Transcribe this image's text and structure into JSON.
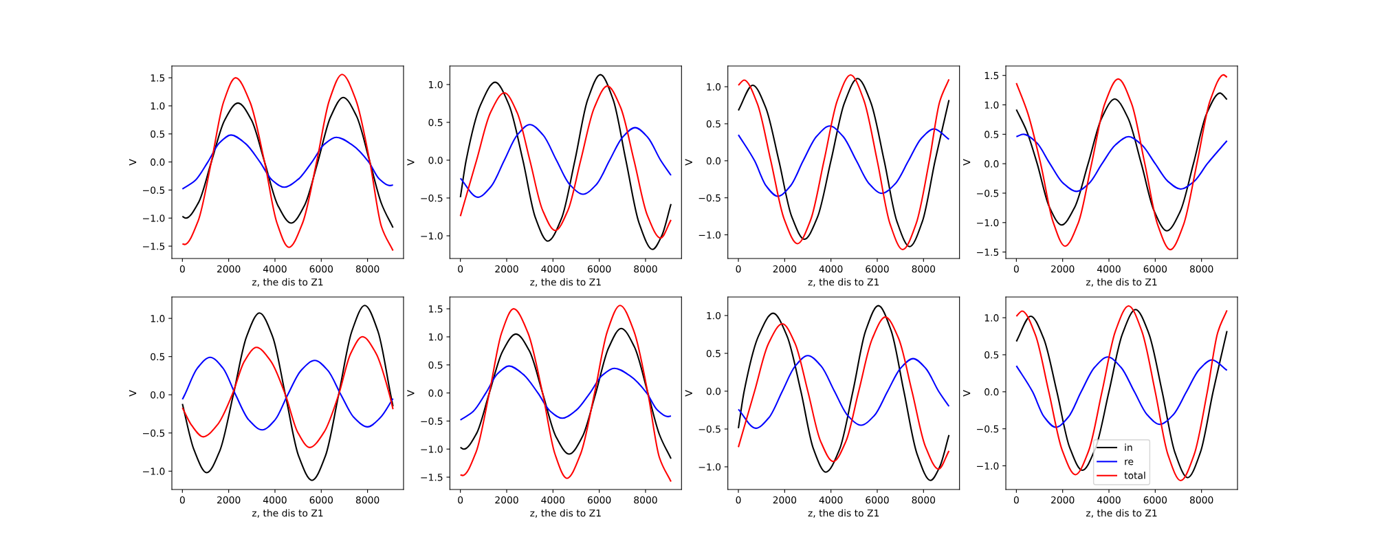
{
  "chart_data": [
    {
      "type": "line",
      "xlabel": "z, the dis to Z1",
      "ylabel": "V",
      "xlim": [
        -455,
        9555
      ],
      "ylim": [
        -1.72,
        1.71
      ],
      "xticks": [
        0,
        2000,
        4000,
        6000,
        8000
      ],
      "yticks": [
        {
          "value": -1.5,
          "label": "−1.5"
        },
        {
          "value": -1.0,
          "label": "−1.0"
        },
        {
          "value": -0.5,
          "label": "−0.5"
        },
        {
          "value": 0.0,
          "label": "0.0"
        },
        {
          "value": 0.5,
          "label": "0.5"
        },
        {
          "value": 1.0,
          "label": "1.0"
        },
        {
          "value": 1.5,
          "label": "1.5"
        }
      ],
      "series": [
        {
          "color": "#000000",
          "x": [
            0,
            150,
            700,
            1250,
            1820,
            2400,
            2980,
            3550,
            4120,
            4700,
            5270,
            5850,
            6400,
            6950,
            7520,
            8100,
            8600,
            9100
          ],
          "values": [
            -0.97,
            -1.0,
            -0.72,
            0,
            0.74,
            1.05,
            0.75,
            0,
            -0.77,
            -1.09,
            -0.78,
            0,
            0.8,
            1.15,
            0.82,
            0,
            -0.74,
            -1.17
          ]
        },
        {
          "color": "#0000ff",
          "x": [
            0,
            550,
            1100,
            1600,
            2100,
            2720,
            3350,
            3870,
            4400,
            5000,
            5600,
            6120,
            6650,
            7350,
            8050,
            8500,
            8950,
            9100
          ],
          "values": [
            -0.48,
            -0.33,
            0,
            0.34,
            0.48,
            0.33,
            0,
            -0.32,
            -0.45,
            -0.31,
            0,
            0.31,
            0.44,
            0.3,
            0,
            -0.3,
            -0.42,
            -0.41
          ]
        },
        {
          "color": "#ff0000",
          "x": [
            0,
            100,
            680,
            1250,
            1780,
            2300,
            2920,
            3550,
            4080,
            4600,
            5200,
            5800,
            6350,
            6900,
            7500,
            8100,
            8600,
            9100
          ],
          "values": [
            -1.46,
            -1.47,
            -1.05,
            0,
            1.07,
            1.5,
            1.07,
            0,
            -1.08,
            -1.52,
            -1.08,
            0,
            1.1,
            1.56,
            1.1,
            0,
            -1.15,
            -1.58
          ]
        }
      ]
    },
    {
      "type": "line",
      "xlabel": "z, the dis to Z1",
      "ylabel": "V",
      "xlim": [
        -455,
        9555
      ],
      "ylim": [
        -1.3,
        1.245
      ],
      "xticks": [
        0,
        2000,
        4000,
        6000,
        8000
      ],
      "yticks": [
        {
          "value": -1.0,
          "label": "−1.0"
        },
        {
          "value": -0.5,
          "label": "−0.5"
        },
        {
          "value": 0.0,
          "label": "0.0"
        },
        {
          "value": 0.5,
          "label": "0.5"
        },
        {
          "value": 1.0,
          "label": "1.0"
        }
      ],
      "series": [
        {
          "color": "#000000",
          "x": [
            0,
            250,
            870,
            1500,
            2100,
            2700,
            3240,
            3780,
            4370,
            4950,
            5500,
            6050,
            6600,
            7150,
            7720,
            8300,
            8700,
            9100
          ],
          "values": [
            -0.49,
            0,
            0.73,
            1.03,
            0.73,
            0,
            -0.76,
            -1.07,
            -0.77,
            0,
            0.8,
            1.13,
            0.8,
            0,
            -0.83,
            -1.18,
            -1.0,
            -0.58
          ]
        },
        {
          "color": "#0000ff",
          "x": [
            0,
            750,
            1320,
            1900,
            2450,
            3000,
            3580,
            4150,
            4720,
            5300,
            5880,
            6450,
            7000,
            7550,
            8100,
            8650,
            9100
          ],
          "values": [
            -0.24,
            -0.49,
            -0.35,
            0,
            0.33,
            0.47,
            0.33,
            0,
            -0.32,
            -0.45,
            -0.32,
            0,
            0.3,
            0.43,
            0.3,
            0,
            -0.2
          ]
        },
        {
          "color": "#ff0000",
          "x": [
            0,
            700,
            1300,
            1900,
            2450,
            3000,
            3550,
            4100,
            4650,
            5200,
            5780,
            6350,
            6920,
            7500,
            8080,
            8650,
            9100
          ],
          "values": [
            -0.74,
            0,
            0.63,
            0.89,
            0.63,
            0,
            -0.66,
            -0.93,
            -0.66,
            0,
            0.69,
            0.98,
            0.7,
            0,
            -0.73,
            -1.03,
            -0.79
          ]
        }
      ]
    },
    {
      "type": "line",
      "xlabel": "z, the dis to Z1",
      "ylabel": "V",
      "xlim": [
        -455,
        9555
      ],
      "ylim": [
        -1.32,
        1.28
      ],
      "xticks": [
        0,
        2000,
        4000,
        6000,
        8000
      ],
      "yticks": [
        {
          "value": -1.0,
          "label": "−1.0"
        },
        {
          "value": -0.5,
          "label": "−0.5"
        },
        {
          "value": 0.0,
          "label": "0.0"
        },
        {
          "value": 0.5,
          "label": "0.5"
        },
        {
          "value": 1.0,
          "label": "1.0"
        }
      ],
      "series": [
        {
          "color": "#000000",
          "x": [
            0,
            620,
            1180,
            1750,
            2300,
            2850,
            3420,
            4000,
            4580,
            5150,
            5720,
            6300,
            6850,
            7400,
            7950,
            8500,
            9100
          ],
          "values": [
            0.68,
            1.02,
            0.72,
            0,
            -0.75,
            -1.06,
            -0.76,
            0,
            0.78,
            1.11,
            0.79,
            0,
            -0.82,
            -1.16,
            -0.82,
            0,
            0.82
          ]
        },
        {
          "color": "#0000ff",
          "x": [
            0,
            700,
            1200,
            1700,
            2250,
            2800,
            3380,
            3950,
            4520,
            5100,
            5650,
            6200,
            6780,
            7350,
            7900,
            8450,
            9100
          ],
          "values": [
            0.35,
            0,
            -0.34,
            -0.48,
            -0.34,
            0,
            0.33,
            0.47,
            0.33,
            0,
            -0.31,
            -0.44,
            -0.31,
            0,
            0.3,
            0.43,
            0.29
          ]
        },
        {
          "color": "#ff0000",
          "x": [
            0,
            250,
            820,
            1400,
            1980,
            2550,
            3120,
            3700,
            4280,
            4850,
            5420,
            6000,
            6550,
            7100,
            7680,
            8250,
            8700,
            9100
          ],
          "values": [
            1.02,
            1.09,
            0.77,
            0,
            -0.79,
            -1.12,
            -0.8,
            0,
            0.82,
            1.16,
            0.82,
            0,
            -0.85,
            -1.2,
            -0.85,
            0,
            0.8,
            1.1
          ]
        }
      ]
    },
    {
      "type": "line",
      "xlabel": "z, the dis to Z1",
      "ylabel": "V",
      "xlim": [
        -455,
        9555
      ],
      "ylim": [
        -1.61,
        1.66
      ],
      "xticks": [
        0,
        2000,
        4000,
        6000,
        8000
      ],
      "yticks": [
        {
          "value": -1.5,
          "label": "−1.5"
        },
        {
          "value": -1.0,
          "label": "−1.0"
        },
        {
          "value": -0.5,
          "label": "−0.5"
        },
        {
          "value": 0.0,
          "label": "0.0"
        },
        {
          "value": 0.5,
          "label": "0.5"
        },
        {
          "value": 1.0,
          "label": "1.0"
        },
        {
          "value": 1.5,
          "label": "1.5"
        }
      ],
      "series": [
        {
          "color": "#000000",
          "x": [
            0,
            450,
            900,
            1420,
            1950,
            2520,
            3100,
            3680,
            4250,
            4820,
            5400,
            5950,
            6500,
            7080,
            7650,
            8220,
            8800,
            9100
          ],
          "values": [
            0.92,
            0.55,
            0,
            -0.73,
            -1.04,
            -0.74,
            0,
            0.77,
            1.1,
            0.78,
            0,
            -0.8,
            -1.14,
            -0.81,
            0,
            0.85,
            1.2,
            1.09
          ]
        },
        {
          "color": "#0000ff",
          "x": [
            0,
            300,
            870,
            1450,
            2020,
            2600,
            3150,
            3700,
            4280,
            4850,
            5420,
            6000,
            6550,
            7100,
            7680,
            8250,
            9100
          ],
          "values": [
            0.46,
            0.5,
            0.36,
            0,
            -0.33,
            -0.47,
            -0.33,
            0,
            0.32,
            0.46,
            0.32,
            0,
            -0.3,
            -0.43,
            -0.3,
            0,
            0.39
          ]
        },
        {
          "color": "#ff0000",
          "x": [
            0,
            500,
            1050,
            1580,
            2100,
            2680,
            3250,
            3820,
            4400,
            4980,
            5550,
            6100,
            6650,
            7220,
            7800,
            8370,
            8950,
            9100
          ],
          "values": [
            1.37,
            0.85,
            0,
            -0.98,
            -1.4,
            -1.0,
            0,
            1.02,
            1.44,
            1.02,
            0,
            -1.03,
            -1.46,
            -1.04,
            0,
            1.07,
            1.51,
            1.47
          ]
        }
      ]
    },
    {
      "type": "line",
      "xlabel": "z, the dis to Z1",
      "ylabel": "V",
      "xlim": [
        -455,
        9555
      ],
      "ylim": [
        -1.24,
        1.28
      ],
      "xticks": [
        0,
        2000,
        4000,
        6000,
        8000
      ],
      "yticks": [
        {
          "value": -1.0,
          "label": "−1.0"
        },
        {
          "value": -0.5,
          "label": "−0.5"
        },
        {
          "value": 0.0,
          "label": "0.0"
        },
        {
          "value": 0.5,
          "label": "0.5"
        },
        {
          "value": 1.0,
          "label": "1.0"
        }
      ],
      "series": [
        {
          "color": "#000000",
          "x": [
            0,
            500,
            1050,
            1620,
            2200,
            2770,
            3330,
            3900,
            4450,
            5020,
            5600,
            6180,
            6750,
            7320,
            7880,
            8450,
            9000,
            9100
          ],
          "values": [
            -0.12,
            -0.72,
            -1.02,
            -0.73,
            0,
            0.76,
            1.07,
            0.76,
            0,
            -0.8,
            -1.12,
            -0.8,
            0,
            0.83,
            1.17,
            0.83,
            0,
            -0.15
          ]
        },
        {
          "color": "#0000ff",
          "x": [
            0,
            100,
            650,
            1200,
            1750,
            2300,
            2870,
            3450,
            4000,
            4550,
            5130,
            5720,
            6280,
            6850,
            7420,
            8000,
            8550,
            9100
          ],
          "values": [
            -0.06,
            0,
            0.35,
            0.49,
            0.35,
            0,
            -0.33,
            -0.46,
            -0.33,
            0,
            0.32,
            0.45,
            0.32,
            0,
            -0.3,
            -0.42,
            -0.3,
            -0.05
          ]
        },
        {
          "color": "#ff0000",
          "x": [
            0,
            400,
            900,
            1520,
            2150,
            2680,
            3200,
            3820,
            4450,
            4980,
            5500,
            6120,
            6750,
            7270,
            7780,
            8370,
            8950,
            9100
          ],
          "values": [
            -0.17,
            -0.4,
            -0.55,
            -0.39,
            0,
            0.44,
            0.62,
            0.44,
            0,
            -0.49,
            -0.69,
            -0.49,
            0,
            0.54,
            0.76,
            0.54,
            0,
            -0.19
          ]
        }
      ]
    },
    {
      "type": "line",
      "xlabel": "z, the dis to Z1",
      "ylabel": "V",
      "xlim": [
        -455,
        9555
      ],
      "ylim": [
        -1.72,
        1.71
      ],
      "xticks": [
        0,
        2000,
        4000,
        6000,
        8000
      ],
      "yticks": [
        {
          "value": -1.5,
          "label": "−1.5"
        },
        {
          "value": -1.0,
          "label": "−1.0"
        },
        {
          "value": -0.5,
          "label": "−0.5"
        },
        {
          "value": 0.0,
          "label": "0.0"
        },
        {
          "value": 0.5,
          "label": "0.5"
        },
        {
          "value": 1.0,
          "label": "1.0"
        },
        {
          "value": 1.5,
          "label": "1.5"
        }
      ],
      "series": [
        {
          "color": "#000000",
          "x": [
            0,
            150,
            700,
            1250,
            1820,
            2400,
            2980,
            3550,
            4120,
            4700,
            5270,
            5850,
            6400,
            6950,
            7520,
            8100,
            8600,
            9100
          ],
          "values": [
            -0.97,
            -1.0,
            -0.72,
            0,
            0.74,
            1.05,
            0.75,
            0,
            -0.77,
            -1.09,
            -0.78,
            0,
            0.8,
            1.15,
            0.82,
            0,
            -0.74,
            -1.17
          ]
        },
        {
          "color": "#0000ff",
          "x": [
            0,
            550,
            1100,
            1600,
            2100,
            2720,
            3350,
            3870,
            4400,
            5000,
            5600,
            6120,
            6650,
            7350,
            8050,
            8500,
            8950,
            9100
          ],
          "values": [
            -0.48,
            -0.33,
            0,
            0.34,
            0.48,
            0.33,
            0,
            -0.32,
            -0.45,
            -0.31,
            0,
            0.31,
            0.44,
            0.3,
            0,
            -0.3,
            -0.42,
            -0.41
          ]
        },
        {
          "color": "#ff0000",
          "x": [
            0,
            100,
            680,
            1250,
            1780,
            2300,
            2920,
            3550,
            4080,
            4600,
            5200,
            5800,
            6350,
            6900,
            7500,
            8100,
            8600,
            9100
          ],
          "values": [
            -1.46,
            -1.47,
            -1.05,
            0,
            1.07,
            1.5,
            1.07,
            0,
            -1.08,
            -1.52,
            -1.08,
            0,
            1.1,
            1.56,
            1.1,
            0,
            -1.15,
            -1.58
          ]
        }
      ]
    },
    {
      "type": "line",
      "xlabel": "z, the dis to Z1",
      "ylabel": "V",
      "xlim": [
        -455,
        9555
      ],
      "ylim": [
        -1.3,
        1.245
      ],
      "xticks": [
        0,
        2000,
        4000,
        6000,
        8000
      ],
      "yticks": [
        {
          "value": -1.0,
          "label": "−1.0"
        },
        {
          "value": -0.5,
          "label": "−0.5"
        },
        {
          "value": 0.0,
          "label": "0.0"
        },
        {
          "value": 0.5,
          "label": "0.5"
        },
        {
          "value": 1.0,
          "label": "1.0"
        }
      ],
      "series": [
        {
          "color": "#000000",
          "x": [
            0,
            250,
            870,
            1500,
            2100,
            2700,
            3240,
            3780,
            4370,
            4950,
            5500,
            6050,
            6600,
            7150,
            7720,
            8300,
            8700,
            9100
          ],
          "values": [
            -0.49,
            0,
            0.73,
            1.03,
            0.73,
            0,
            -0.76,
            -1.07,
            -0.77,
            0,
            0.8,
            1.13,
            0.8,
            0,
            -0.83,
            -1.18,
            -1.0,
            -0.58
          ]
        },
        {
          "color": "#0000ff",
          "x": [
            0,
            750,
            1320,
            1900,
            2450,
            3000,
            3580,
            4150,
            4720,
            5300,
            5880,
            6450,
            7000,
            7550,
            8100,
            8650,
            9100
          ],
          "values": [
            -0.24,
            -0.49,
            -0.35,
            0,
            0.33,
            0.47,
            0.33,
            0,
            -0.32,
            -0.45,
            -0.32,
            0,
            0.3,
            0.43,
            0.3,
            0,
            -0.2
          ]
        },
        {
          "color": "#ff0000",
          "x": [
            0,
            700,
            1300,
            1900,
            2450,
            3000,
            3550,
            4100,
            4650,
            5200,
            5780,
            6350,
            6920,
            7500,
            8080,
            8650,
            9100
          ],
          "values": [
            -0.74,
            0,
            0.63,
            0.89,
            0.63,
            0,
            -0.66,
            -0.93,
            -0.66,
            0,
            0.69,
            0.98,
            0.7,
            0,
            -0.73,
            -1.03,
            -0.79
          ]
        }
      ]
    },
    {
      "type": "line",
      "xlabel": "z, the dis to Z1",
      "ylabel": "V",
      "xlim": [
        -455,
        9555
      ],
      "ylim": [
        -1.32,
        1.28
      ],
      "xticks": [
        0,
        2000,
        4000,
        6000,
        8000
      ],
      "legend": "bottom",
      "yticks": [
        {
          "value": -1.0,
          "label": "−1.0"
        },
        {
          "value": -0.5,
          "label": "−0.5"
        },
        {
          "value": 0.0,
          "label": "0.0"
        },
        {
          "value": 0.5,
          "label": "0.5"
        },
        {
          "value": 1.0,
          "label": "1.0"
        }
      ],
      "series": [
        {
          "name": "in",
          "color": "#000000",
          "x": [
            0,
            620,
            1180,
            1750,
            2300,
            2850,
            3420,
            4000,
            4580,
            5150,
            5720,
            6300,
            6850,
            7400,
            7950,
            8500,
            9100
          ],
          "values": [
            0.68,
            1.02,
            0.72,
            0,
            -0.75,
            -1.06,
            -0.76,
            0,
            0.78,
            1.11,
            0.79,
            0,
            -0.82,
            -1.16,
            -0.82,
            0,
            0.82
          ]
        },
        {
          "name": "re",
          "color": "#0000ff",
          "x": [
            0,
            700,
            1200,
            1700,
            2250,
            2800,
            3380,
            3950,
            4520,
            5100,
            5650,
            6200,
            6780,
            7350,
            7900,
            8450,
            9100
          ],
          "values": [
            0.35,
            0,
            -0.34,
            -0.48,
            -0.34,
            0,
            0.33,
            0.47,
            0.33,
            0,
            -0.31,
            -0.44,
            -0.31,
            0,
            0.3,
            0.43,
            0.29
          ]
        },
        {
          "name": "total",
          "color": "#ff0000",
          "x": [
            0,
            250,
            820,
            1400,
            1980,
            2550,
            3120,
            3700,
            4280,
            4850,
            5420,
            6000,
            6550,
            7100,
            7680,
            8250,
            8700,
            9100
          ],
          "values": [
            1.02,
            1.09,
            0.77,
            0,
            -0.79,
            -1.12,
            -0.8,
            0,
            0.82,
            1.16,
            0.82,
            0,
            -0.85,
            -1.2,
            -0.85,
            0,
            0.8,
            1.1
          ]
        }
      ]
    }
  ]
}
